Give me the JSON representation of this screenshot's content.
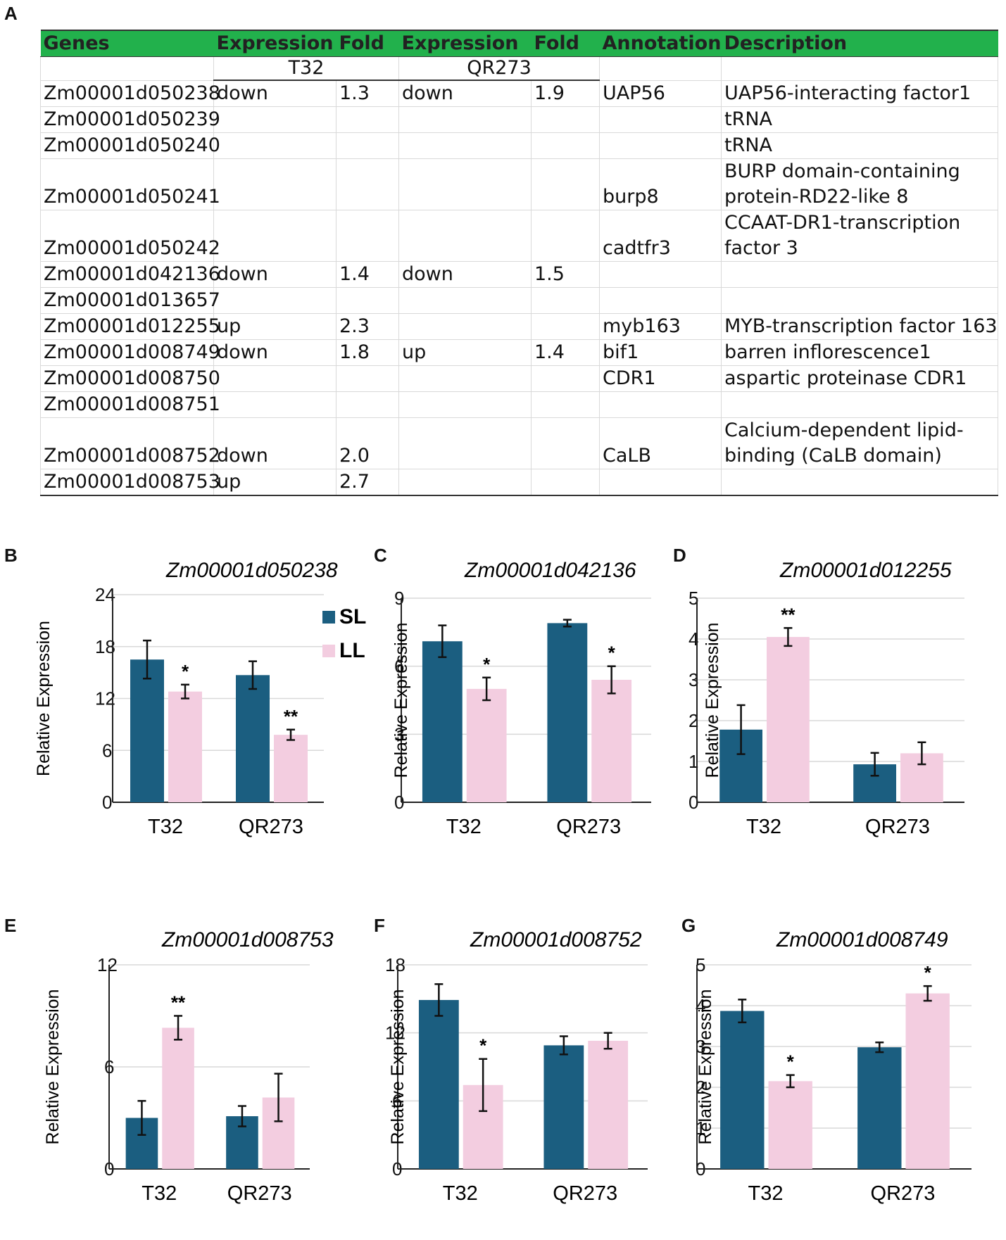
{
  "panel_labels": [
    "A",
    "B",
    "C",
    "D",
    "E",
    "F",
    "G"
  ],
  "table": {
    "headers": [
      "Genes",
      "Expression",
      "Fold",
      "Expression",
      "Fold",
      "Annotation",
      "Description"
    ],
    "subheaders": [
      "T32",
      "QR273"
    ],
    "rows": [
      [
        "Zm00001d050238",
        "down",
        "1.3",
        "down",
        "1.9",
        "UAP56",
        "UAP56-interacting factor1"
      ],
      [
        "Zm00001d050239",
        "",
        "",
        "",
        "",
        "",
        "tRNA"
      ],
      [
        "Zm00001d050240",
        "",
        "",
        "",
        "",
        "",
        "tRNA"
      ],
      [
        "Zm00001d050241",
        "",
        "",
        "",
        "",
        "burp8",
        "BURP domain-containing protein-RD22-like 8"
      ],
      [
        "Zm00001d050242",
        "",
        "",
        "",
        "",
        "cadtfr3",
        "CCAAT-DR1-transcription factor 3"
      ],
      [
        "Zm00001d042136",
        "down",
        "1.4",
        "down",
        "1.5",
        "",
        ""
      ],
      [
        "Zm00001d013657",
        "",
        "",
        "",
        "",
        "",
        ""
      ],
      [
        "Zm00001d012255",
        "up",
        "2.3",
        "",
        "",
        "myb163",
        "MYB-transcription factor 163"
      ],
      [
        "Zm00001d008749",
        "down",
        "1.8",
        "up",
        "1.4",
        "bif1",
        "barren inflorescence1"
      ],
      [
        "Zm00001d008750",
        "",
        "",
        "",
        "",
        "CDR1",
        "aspartic proteinase CDR1"
      ],
      [
        "Zm00001d008751",
        "",
        "",
        "",
        "",
        "",
        ""
      ],
      [
        "Zm00001d008752",
        "down",
        "2.0",
        "",
        "",
        "CaLB",
        "Calcium-dependent lipid-binding (CaLB domain)"
      ],
      [
        "Zm00001d008753",
        "up",
        "2.7",
        "",
        "",
        "",
        ""
      ]
    ]
  },
  "colors": {
    "SL": "#1b5e80",
    "LL": "#f3cde0",
    "header_green": "#22b14c"
  },
  "chart_data": [
    {
      "type": "bar",
      "title": "Zm00001d050238",
      "ylabel": "Relative Expression",
      "categories": [
        "T32",
        "QR273"
      ],
      "ylim": [
        0,
        24
      ],
      "yticks": [
        "0",
        "6",
        "12",
        "18",
        "24"
      ],
      "series": [
        {
          "name": "SL",
          "values": [
            16.5,
            14.7
          ],
          "errors": [
            2.2,
            1.6
          ]
        },
        {
          "name": "LL",
          "values": [
            12.8,
            7.8
          ],
          "errors": [
            0.8,
            0.6
          ]
        }
      ],
      "significance": {
        "T32": "*",
        "QR273": "**"
      },
      "legend": [
        "SL",
        "LL"
      ]
    },
    {
      "type": "bar",
      "title": "Zm00001d042136",
      "ylabel": "Relative Expression",
      "categories": [
        "T32",
        "QR273"
      ],
      "ylim": [
        0,
        9
      ],
      "yticks": [
        "0",
        "3",
        "6",
        "9"
      ],
      "series": [
        {
          "name": "SL",
          "values": [
            7.1,
            7.9
          ],
          "errors": [
            0.7,
            0.15
          ]
        },
        {
          "name": "LL",
          "values": [
            5.0,
            5.4
          ],
          "errors": [
            0.5,
            0.6
          ]
        }
      ],
      "significance": {
        "T32": "*",
        "QR273": "*"
      }
    },
    {
      "type": "bar",
      "title": "Zm00001d012255",
      "ylabel": "Relative Expression",
      "categories": [
        "T32",
        "QR273"
      ],
      "ylim": [
        0,
        5
      ],
      "yticks": [
        "0",
        "1",
        "2",
        "3",
        "4",
        "5"
      ],
      "series": [
        {
          "name": "SL",
          "values": [
            1.78,
            0.93
          ],
          "errors": [
            0.6,
            0.28
          ]
        },
        {
          "name": "LL",
          "values": [
            4.05,
            1.2
          ],
          "errors": [
            0.22,
            0.27
          ]
        }
      ],
      "significance": {
        "T32": "**",
        "QR273": ""
      }
    },
    {
      "type": "bar",
      "title": "Zm00001d008753",
      "ylabel": "Relative Expression",
      "categories": [
        "T32",
        "QR273"
      ],
      "ylim": [
        0,
        12
      ],
      "yticks": [
        "0",
        "6",
        "12"
      ],
      "series": [
        {
          "name": "SL",
          "values": [
            3.0,
            3.1
          ],
          "errors": [
            1.0,
            0.6
          ]
        },
        {
          "name": "LL",
          "values": [
            8.3,
            4.2
          ],
          "errors": [
            0.7,
            1.4
          ]
        }
      ],
      "significance": {
        "T32": "**",
        "QR273": ""
      }
    },
    {
      "type": "bar",
      "title": "Zm00001d008752",
      "ylabel": "Relative Expression",
      "categories": [
        "T32",
        "QR273"
      ],
      "ylim": [
        0,
        18
      ],
      "yticks": [
        "0",
        "6",
        "12",
        "18"
      ],
      "series": [
        {
          "name": "SL",
          "values": [
            14.9,
            10.9
          ],
          "errors": [
            1.4,
            0.8
          ]
        },
        {
          "name": "LL",
          "values": [
            7.4,
            11.3
          ],
          "errors": [
            2.3,
            0.7
          ]
        }
      ],
      "significance": {
        "T32": "*",
        "QR273": ""
      }
    },
    {
      "type": "bar",
      "title": "Zm00001d008749",
      "ylabel": "Relative Expression",
      "categories": [
        "T32",
        "QR273"
      ],
      "ylim": [
        0,
        5
      ],
      "yticks": [
        "0",
        "1",
        "2",
        "3",
        "4",
        "5"
      ],
      "series": [
        {
          "name": "SL",
          "values": [
            3.87,
            2.98
          ],
          "errors": [
            0.28,
            0.12
          ]
        },
        {
          "name": "LL",
          "values": [
            2.15,
            4.3
          ],
          "errors": [
            0.15,
            0.18
          ]
        }
      ],
      "significance": {
        "T32": "*",
        "QR273": "*"
      }
    }
  ]
}
